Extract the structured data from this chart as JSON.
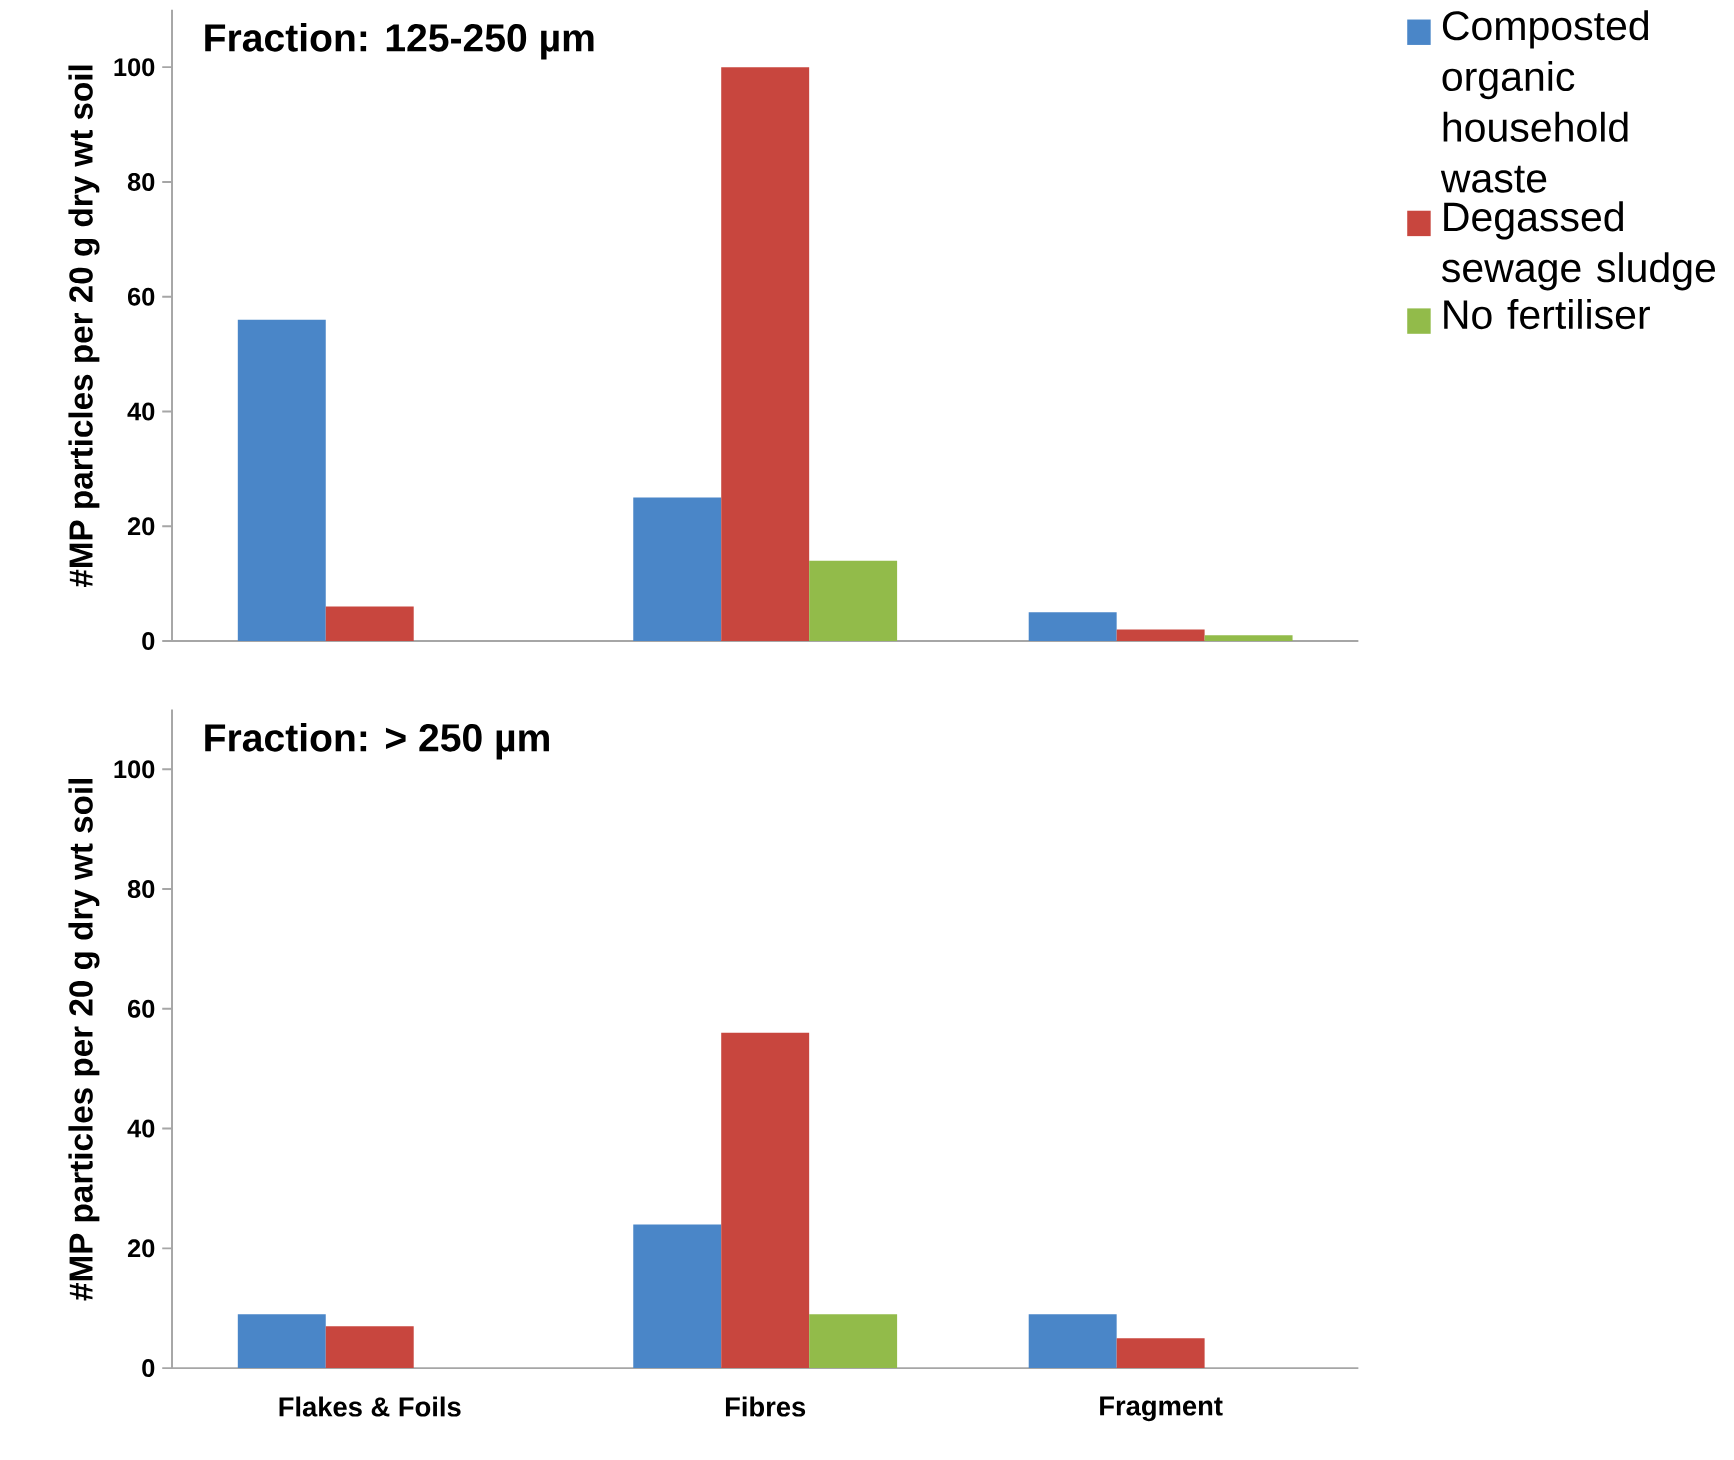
{
  "chart_data": [
    {
      "type": "bar",
      "title": "Fraction: 125-250 µm",
      "ylabel": "#MP particles per 20 g dry wt soil",
      "categories": [
        null,
        null,
        null
      ],
      "ylim": [
        0,
        110
      ],
      "yticks": [
        0,
        20,
        40,
        60,
        80,
        100
      ],
      "tick_labels": "y",
      "legend": "right",
      "series": [
        {
          "name": "Composted organic household waste",
          "color": "#4a86c8",
          "values": [
            56,
            25,
            5
          ]
        },
        {
          "name": "Degassed sewage sludge",
          "color": "#c8463e",
          "values": [
            6,
            100,
            2
          ]
        },
        {
          "name": "No fertiliser",
          "color": "#92bb4a",
          "values": [
            0,
            14,
            1
          ]
        }
      ]
    },
    {
      "type": "bar",
      "title": "Fraction: > 250 µm",
      "ylabel": "#MP particles per 20 g dry wt soil",
      "categories": [
        "Flakes & Foils",
        "Fibres",
        "Fragment"
      ],
      "ylim": [
        0,
        110
      ],
      "yticks": [
        0,
        20,
        40,
        60,
        80,
        100
      ],
      "series": [
        {
          "color": "#4a86c8",
          "values": [
            9,
            24,
            9
          ]
        },
        {
          "color": "#c8463e",
          "values": [
            7,
            56,
            5
          ]
        },
        {
          "color": "#92bb4a",
          "values": [
            0,
            9,
            0
          ]
        }
      ]
    }
  ]
}
